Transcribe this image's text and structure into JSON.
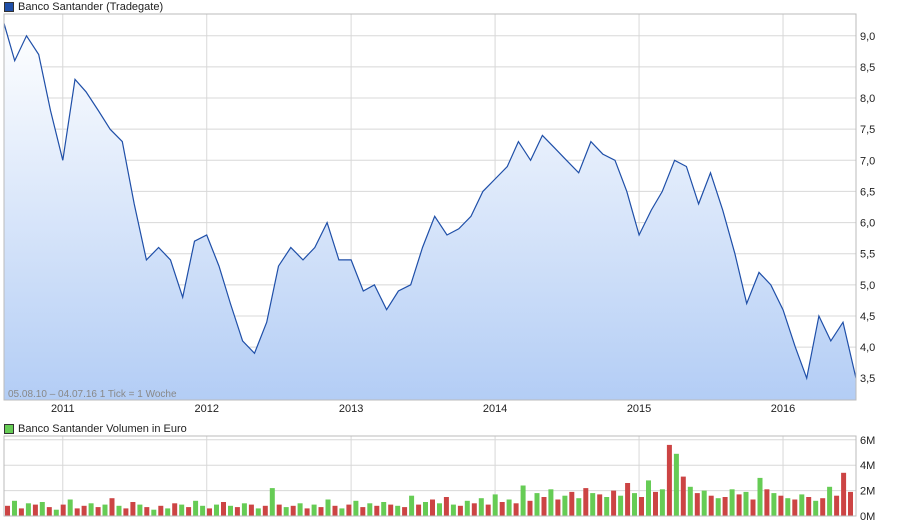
{
  "colors": {
    "price_line": "#1f4fa8",
    "area_top": "#ffffff",
    "area_bottom": "#b3cdf5",
    "volume_up": "#66cc55",
    "volume_down": "#cc4444",
    "grid": "#d8d8d8",
    "price_swatch": "#1f4fa8",
    "volume_swatch": "#66cc55"
  },
  "price_legend": "Banco Santander (Tradegate)",
  "volume_legend": "Banco Santander Volumen in Euro",
  "footer_note": "05.08.10 – 04.07.16   1 Tick = 1 Woche",
  "chart_data": [
    {
      "type": "area",
      "series": [
        {
          "name": "Banco Santander (Tradegate)",
          "x": [
            "2010-08-05",
            "2010-09-01",
            "2010-10-01",
            "2010-11-01",
            "2010-12-01",
            "2011-01-01",
            "2011-02-01",
            "2011-03-01",
            "2011-04-01",
            "2011-05-01",
            "2011-06-01",
            "2011-07-01",
            "2011-08-01",
            "2011-09-01",
            "2011-10-01",
            "2011-11-01",
            "2011-12-01",
            "2012-01-01",
            "2012-02-01",
            "2012-03-01",
            "2012-04-01",
            "2012-05-01",
            "2012-06-01",
            "2012-07-01",
            "2012-08-01",
            "2012-09-01",
            "2012-10-01",
            "2012-11-01",
            "2012-12-01",
            "2013-01-01",
            "2013-02-01",
            "2013-03-01",
            "2013-04-01",
            "2013-05-01",
            "2013-06-01",
            "2013-07-01",
            "2013-08-01",
            "2013-09-01",
            "2013-10-01",
            "2013-11-01",
            "2013-12-01",
            "2014-01-01",
            "2014-02-01",
            "2014-03-01",
            "2014-04-01",
            "2014-05-01",
            "2014-06-01",
            "2014-07-01",
            "2014-08-01",
            "2014-09-01",
            "2014-10-01",
            "2014-11-01",
            "2014-12-01",
            "2015-01-01",
            "2015-02-01",
            "2015-03-01",
            "2015-04-01",
            "2015-05-01",
            "2015-06-01",
            "2015-07-01",
            "2015-08-01",
            "2015-09-01",
            "2015-10-01",
            "2015-11-01",
            "2015-12-01",
            "2016-01-01",
            "2016-02-01",
            "2016-03-01",
            "2016-04-01",
            "2016-05-01",
            "2016-06-01",
            "2016-07-04"
          ],
          "values": [
            9.2,
            8.6,
            9.0,
            8.7,
            7.8,
            7.0,
            8.3,
            8.1,
            7.8,
            7.5,
            7.3,
            6.3,
            5.4,
            5.6,
            5.4,
            4.8,
            5.7,
            5.8,
            5.3,
            4.7,
            4.1,
            3.9,
            4.4,
            5.3,
            5.6,
            5.4,
            5.6,
            6.0,
            5.4,
            5.4,
            4.9,
            5.0,
            4.6,
            4.9,
            5.0,
            5.6,
            6.1,
            5.8,
            5.9,
            6.1,
            6.5,
            6.7,
            6.9,
            7.3,
            7.0,
            7.4,
            7.2,
            7.0,
            6.8,
            7.3,
            7.1,
            7.0,
            6.5,
            5.8,
            6.2,
            6.5,
            7.0,
            6.9,
            6.3,
            6.8,
            6.2,
            5.5,
            4.7,
            5.2,
            5.0,
            4.6,
            4.0,
            3.5,
            4.5,
            4.1,
            4.4,
            3.5
          ]
        }
      ],
      "ylim": [
        3.15,
        9.35
      ],
      "yticks": [
        "9,0",
        "8,5",
        "8,0",
        "7,5",
        "7,0",
        "6,5",
        "6,0",
        "5,5",
        "5,0",
        "4,5",
        "4,0",
        "3,5"
      ],
      "xticks": [
        "2011",
        "2012",
        "2013",
        "2014",
        "2015",
        "2016"
      ],
      "grid": true
    },
    {
      "type": "bar",
      "series": [
        {
          "name": "Banco Santander Volumen in Euro",
          "values": [
            0.8,
            1.2,
            0.6,
            1.0,
            0.9,
            1.1,
            0.7,
            0.5,
            0.9,
            1.3,
            0.6,
            0.8,
            1.0,
            0.7,
            0.9,
            1.4,
            0.8,
            0.6,
            1.1,
            0.9,
            0.7,
            0.5,
            0.8,
            0.6,
            1.0,
            0.9,
            0.7,
            1.2,
            0.8,
            0.6,
            0.9,
            1.1,
            0.8,
            0.7,
            1.0,
            0.9,
            0.6,
            0.8,
            2.2,
            0.9,
            0.7,
            0.8,
            1.0,
            0.6,
            0.9,
            0.7,
            1.3,
            0.8,
            0.6,
            0.9,
            1.2,
            0.7,
            1.0,
            0.8,
            1.1,
            0.9,
            0.8,
            0.7,
            1.6,
            0.9,
            1.1,
            1.3,
            1.0,
            1.5,
            0.9,
            0.8,
            1.2,
            1.0,
            1.4,
            0.9,
            1.7,
            1.1,
            1.3,
            1.0,
            2.4,
            1.2,
            1.8,
            1.5,
            2.1,
            1.3,
            1.6,
            1.9,
            1.4,
            2.2,
            1.8,
            1.7,
            1.5,
            2.0,
            1.6,
            2.6,
            1.8,
            1.5,
            2.8,
            1.9,
            2.1,
            5.6,
            4.9,
            3.1,
            2.3,
            1.8,
            2.0,
            1.6,
            1.4,
            1.5,
            2.1,
            1.7,
            1.9,
            1.3,
            3.0,
            2.1,
            1.8,
            1.6,
            1.4,
            1.3,
            1.7,
            1.5,
            1.2,
            1.4,
            2.3,
            1.6,
            3.4,
            1.9
          ],
          "directions": [
            "d",
            "u",
            "d",
            "u",
            "d",
            "u",
            "d",
            "u",
            "d",
            "u",
            "d",
            "d",
            "u",
            "d",
            "u",
            "d",
            "u",
            "d",
            "d",
            "u",
            "d",
            "u",
            "d",
            "u",
            "d",
            "u",
            "d",
            "u",
            "u",
            "d",
            "u",
            "d",
            "u",
            "d",
            "u",
            "d",
            "u",
            "d",
            "u",
            "d",
            "u",
            "d",
            "u",
            "d",
            "u",
            "d",
            "u",
            "d",
            "u",
            "d",
            "u",
            "d",
            "u",
            "d",
            "u",
            "d",
            "u",
            "d",
            "u",
            "d",
            "u",
            "d",
            "u",
            "d",
            "u",
            "d",
            "u",
            "d",
            "u",
            "d",
            "u",
            "d",
            "u",
            "d",
            "u",
            "d",
            "u",
            "d",
            "u",
            "d",
            "u",
            "d",
            "u",
            "d",
            "u",
            "d",
            "u",
            "d",
            "u",
            "d",
            "u",
            "d",
            "u",
            "d",
            "u",
            "d",
            "u",
            "d",
            "u",
            "d",
            "u",
            "d",
            "u",
            "d",
            "u",
            "d",
            "u",
            "d",
            "u",
            "d",
            "u",
            "d",
            "u",
            "d",
            "u",
            "d",
            "u",
            "d",
            "u",
            "d",
            "d",
            "d"
          ]
        }
      ],
      "ylim": [
        0,
        6.3
      ],
      "yticks": [
        "6M",
        "4M",
        "2M",
        "0M"
      ],
      "xticks": [
        "2011",
        "2012",
        "2013",
        "2014",
        "2015",
        "2016"
      ],
      "grid": true
    }
  ]
}
